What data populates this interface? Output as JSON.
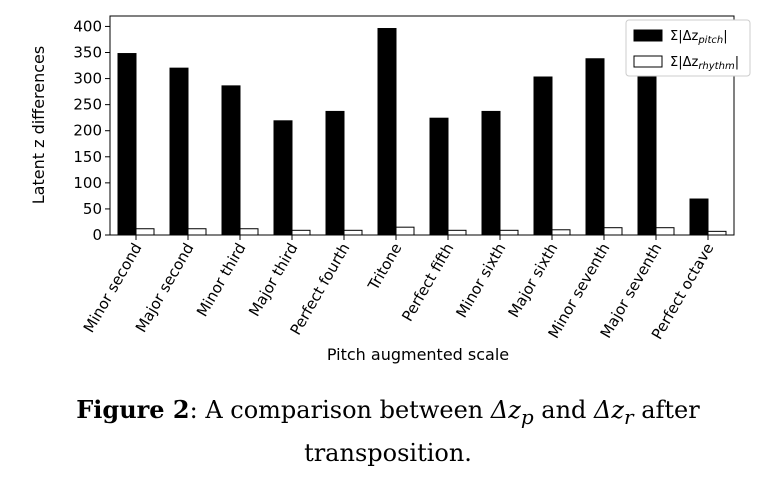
{
  "chart_data": {
    "type": "bar",
    "title": "",
    "xlabel": "Pitch augmented scale",
    "ylabel": "Latent z differences",
    "ylim": [
      0,
      420
    ],
    "yticks": [
      0,
      50,
      100,
      150,
      200,
      250,
      300,
      350,
      400
    ],
    "grid": false,
    "legend_position": "top-right",
    "categories": [
      "Minor second",
      "Major second",
      "Minor third",
      "Major third",
      "Perfect fourth",
      "Tritone",
      "Perfect fifth",
      "Minor sixth",
      "Major sixth",
      "Minor seventh",
      "Major seventh",
      "Perfect octave"
    ],
    "series": [
      {
        "name": "Σ|Δz_pitch|",
        "color": "#000000",
        "values": [
          348,
          320,
          286,
          219,
          237,
          396,
          224,
          237,
          303,
          338,
          338,
          69
        ]
      },
      {
        "name": "Σ|Δz_rhythm|",
        "color": "#ffffff",
        "values": [
          12,
          12,
          12,
          9,
          9,
          15,
          9,
          9,
          10,
          14,
          14,
          7
        ]
      }
    ]
  },
  "legend": {
    "pitch_prefix": "Σ|Δz",
    "pitch_sub": "pitch",
    "pitch_suffix": "|",
    "rhythm_prefix": "Σ|Δz",
    "rhythm_sub": "rhythm",
    "rhythm_suffix": "|"
  },
  "caption": {
    "label": "Figure 2",
    "text_1": ": A comparison between ",
    "math_1": "Δz",
    "math_1_sub": "p",
    "text_2": " and ",
    "math_2": "Δz",
    "math_2_sub": "r",
    "text_3": " after",
    "line_2": "transposition."
  }
}
